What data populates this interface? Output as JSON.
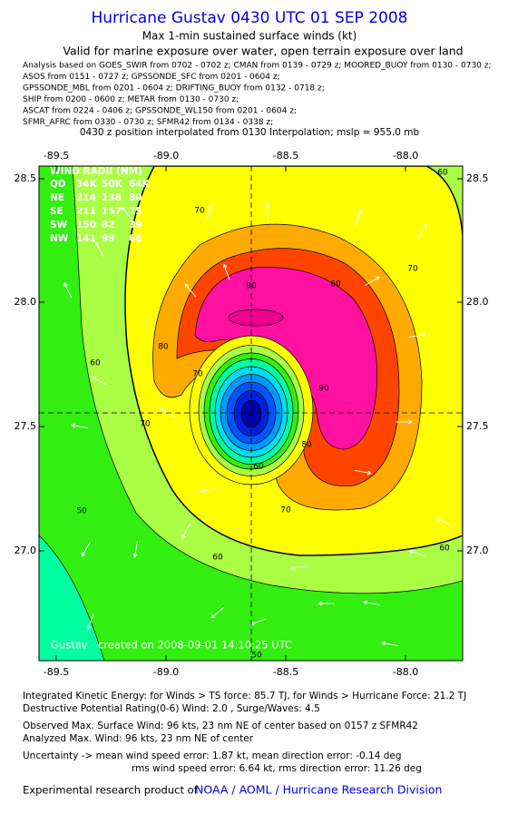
{
  "header": {
    "title": "Hurricane Gustav 0430 UTC 01 SEP 2008",
    "subtitle": "Max 1-min sustained surface winds (kt)",
    "valid": "Valid for marine exposure over water, open terrain exposure over land",
    "analysis": [
      "Analysis based on  GOES_SWIR from 0702 - 0702 z;  CMAN from 0139 - 0729 z;  MOORED_BUOY from 0130 - 0730 z;",
      "ASOS from 0151 - 0727 z;  GPSSONDE_SFC from 0201 - 0604 z;",
      "GPSSONDE_MBL from 0201 - 0604 z;  DRIFTING_BUOY from 0132 - 0718 z;",
      "SHIP from 0200 - 0600 z;  METAR from 0130 - 0730 z;",
      "ASCAT from 0224 - 0406 z;  GPSSONDE_WL150 from 0201 - 0604 z;",
      "SFMR_AFRC from 0330 - 0730 z;  SFMR42 from 0134 - 0338 z;"
    ],
    "position": "0430 z position interpolated from 0130 Interpolation; mslp = 955.0 mb"
  },
  "map": {
    "lon_ticks": [
      "-89.5",
      "-89.0",
      "-88.5",
      "-88.0"
    ],
    "lat_ticks": [
      "28.5",
      "28.0",
      "27.5",
      "27.0"
    ],
    "wind_radii": {
      "title": "WIND RADII (NM)",
      "rows": [
        [
          "QD",
          "34K",
          "50K",
          "64K"
        ],
        [
          "NE",
          "214",
          "138",
          "80"
        ],
        [
          "SE",
          "211",
          "157",
          "75"
        ],
        [
          "SW",
          "150",
          "82",
          "39"
        ],
        [
          "NW",
          "141",
          "99",
          "66"
        ]
      ]
    },
    "contour_labels": [
      "70",
      "70",
      "60",
      "90",
      "80",
      "70",
      "90",
      "80",
      "70",
      "60",
      "50",
      "60",
      "60",
      "70",
      "60",
      "50",
      "60"
    ],
    "credit": "Gustav - created on 2008-09-01 14:10:25 UTC"
  },
  "footer": {
    "lines": [
      "Integrated Kinetic Energy:  for Winds > TS force: 85.7 TJ,  for Winds > Hurricane Force: 21.2 TJ",
      "Destructive Potential Rating(0-6)   Wind: 2.0 , Surge/Waves: 4.5",
      "Observed Max. Surface Wind: 96 kts, 23 nm NE of center based on 0157 z SFMR42",
      "Analyzed Max. Wind: 96 kts, 23 nm NE of center",
      "Uncertainty -> mean wind speed error: 1.87 kt,   mean direction error:  -0.14 deg",
      "rms wind speed error: 6.64 kt,   rms direction error: 11.26 deg"
    ],
    "product": "Experimental research product of",
    "link": "NOAA / AOML / Hurricane Research Division"
  }
}
